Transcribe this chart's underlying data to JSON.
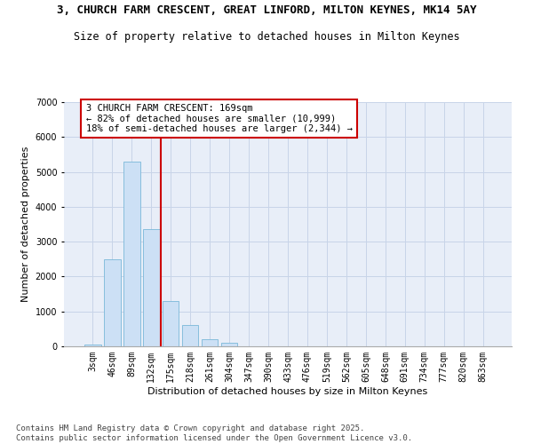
{
  "title_line1": "3, CHURCH FARM CRESCENT, GREAT LINFORD, MILTON KEYNES, MK14 5AY",
  "title_line2": "Size of property relative to detached houses in Milton Keynes",
  "xlabel": "Distribution of detached houses by size in Milton Keynes",
  "ylabel": "Number of detached properties",
  "bar_labels": [
    "3sqm",
    "46sqm",
    "89sqm",
    "132sqm",
    "175sqm",
    "218sqm",
    "261sqm",
    "304sqm",
    "347sqm",
    "390sqm",
    "433sqm",
    "476sqm",
    "519sqm",
    "562sqm",
    "605sqm",
    "648sqm",
    "691sqm",
    "734sqm",
    "777sqm",
    "820sqm",
    "863sqm"
  ],
  "bar_values": [
    60,
    2500,
    5300,
    3350,
    1300,
    600,
    200,
    90,
    0,
    0,
    0,
    0,
    0,
    0,
    0,
    0,
    0,
    0,
    0,
    0,
    0
  ],
  "bar_color": "#cce0f5",
  "bar_edge_color": "#7ab8d9",
  "vline_x": 3.5,
  "vline_color": "#cc0000",
  "annotation_text": "3 CHURCH FARM CRESCENT: 169sqm\n← 82% of detached houses are smaller (10,999)\n18% of semi-detached houses are larger (2,344) →",
  "annotation_box_color": "#ffffff",
  "annotation_box_edge_color": "#cc0000",
  "ylim": [
    0,
    7000
  ],
  "yticks": [
    0,
    1000,
    2000,
    3000,
    4000,
    5000,
    6000,
    7000
  ],
  "grid_color": "#c8d4e8",
  "background_color": "#e8eef8",
  "footer_line1": "Contains HM Land Registry data © Crown copyright and database right 2025.",
  "footer_line2": "Contains public sector information licensed under the Open Government Licence v3.0.",
  "title_fontsize": 9,
  "subtitle_fontsize": 8.5,
  "axis_label_fontsize": 8,
  "tick_fontsize": 7,
  "annotation_fontsize": 7.5,
  "footer_fontsize": 6.5
}
